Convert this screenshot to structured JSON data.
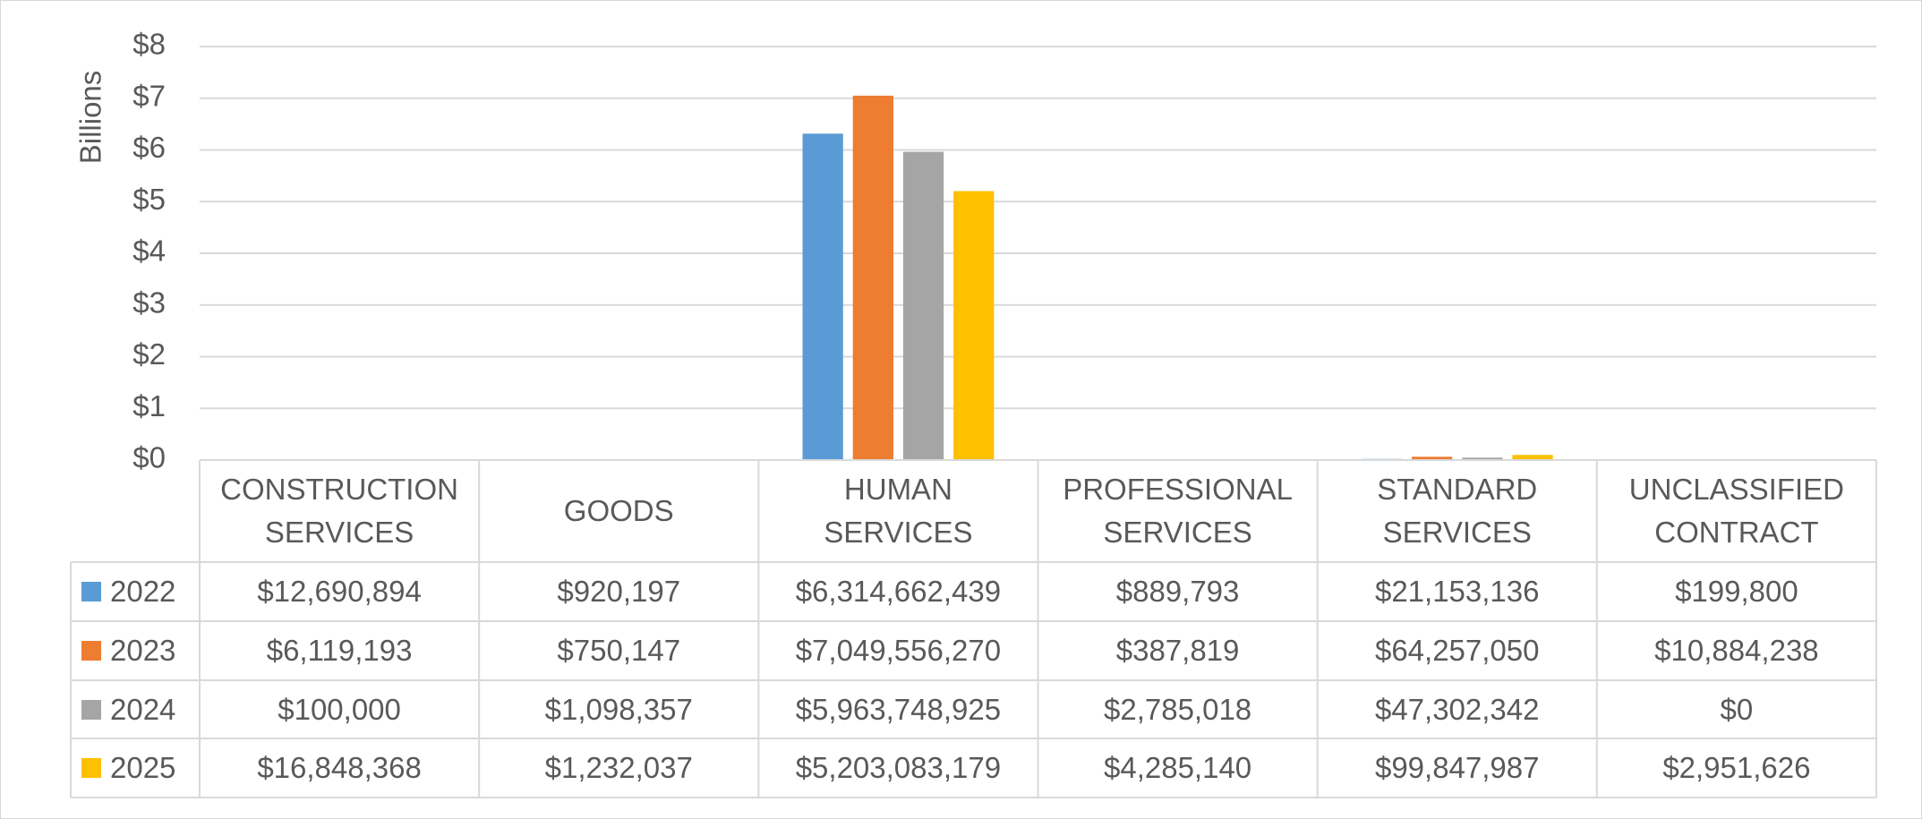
{
  "chart_data": {
    "type": "bar",
    "y_label": "Billions",
    "categories": [
      "CONSTRUCTION SERVICES",
      "GOODS",
      "HUMAN SERVICES",
      "PROFESSIONAL SERVICES",
      "STANDARD SERVICES",
      "UNCLASSIFIED CONTRACT"
    ],
    "series": [
      {
        "name": "2022",
        "color": "#5b9bd5",
        "values": [
          0.012690894,
          0.000920197,
          6.314662439,
          0.000889793,
          0.021153136,
          0.0001998
        ],
        "value_labels": [
          "$12,690,894",
          "$920,197",
          "$6,314,662,439",
          "$889,793",
          "$21,153,136",
          "$199,800"
        ]
      },
      {
        "name": "2023",
        "color": "#ed7d31",
        "values": [
          0.006119193,
          0.000750147,
          7.04955627,
          0.000387819,
          0.06425705,
          0.010884238
        ],
        "value_labels": [
          "$6,119,193",
          "$750,147",
          "$7,049,556,270",
          "$387,819",
          "$64,257,050",
          "$10,884,238"
        ]
      },
      {
        "name": "2024",
        "color": "#a5a5a5",
        "values": [
          0.0001,
          0.001098357,
          5.963748925,
          0.002785018,
          0.047302342,
          0
        ],
        "value_labels": [
          "$100,000",
          "$1,098,357",
          "$5,963,748,925",
          "$2,785,018",
          "$47,302,342",
          "$0"
        ]
      },
      {
        "name": "2025",
        "color": "#ffc000",
        "values": [
          0.016848368,
          0.001232037,
          5.203083179,
          0.00428514,
          0.099847987,
          0.002951626
        ],
        "value_labels": [
          "$16,848,368",
          "$1,232,037",
          "$5,203,083,179",
          "$4,285,140",
          "$99,847,987",
          "$2,951,626"
        ]
      }
    ],
    "ylim": [
      0,
      8
    ],
    "yticks": [
      {
        "value": 0,
        "label": "$0"
      },
      {
        "value": 1,
        "label": "$1"
      },
      {
        "value": 2,
        "label": "$2"
      },
      {
        "value": 3,
        "label": "$3"
      },
      {
        "value": 4,
        "label": "$4"
      },
      {
        "value": 5,
        "label": "$5"
      },
      {
        "value": 6,
        "label": "$6"
      },
      {
        "value": 7,
        "label": "$7"
      },
      {
        "value": 8,
        "label": "$8"
      }
    ],
    "grid": true
  }
}
